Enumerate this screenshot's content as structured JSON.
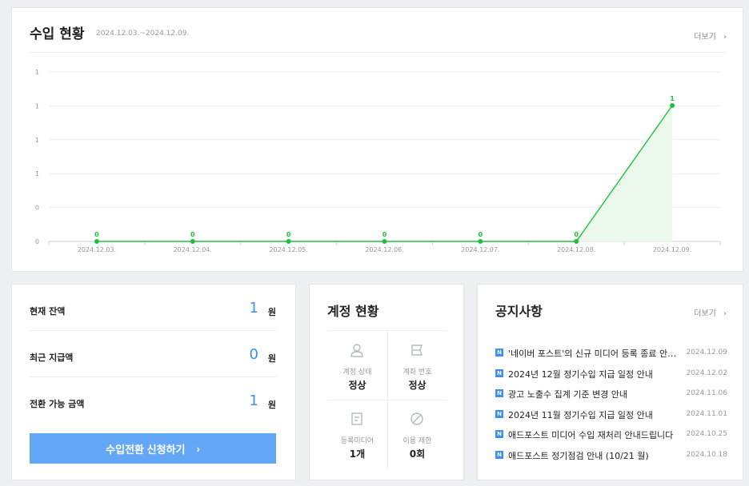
{
  "revenue": {
    "title": "수입 현황",
    "range": "2024.12.03.~2024.12.09.",
    "more_label": "더보기",
    "more_icon": "chevron-right-icon"
  },
  "chart_data": {
    "type": "area",
    "categories": [
      "2024.12.03.",
      "2024.12.04.",
      "2024.12.05.",
      "2024.12.06.",
      "2024.12.07.",
      "2024.12.08.",
      "2024.12.09."
    ],
    "values": [
      0,
      0,
      0,
      0,
      0,
      0,
      1
    ],
    "data_labels": [
      "0",
      "0",
      "0",
      "0",
      "0",
      "0",
      "1"
    ],
    "y_ticks": [
      "0",
      "0",
      "1",
      "1",
      "1",
      "1"
    ],
    "ylim": [
      0,
      1
    ],
    "grid": true,
    "color": "#1ec23a",
    "fill_color": "#eaf9ec"
  },
  "balance": {
    "rows": [
      {
        "label": "현재 잔액",
        "value": "1",
        "unit": "원"
      },
      {
        "label": "최근 지급액",
        "value": "0",
        "unit": "원"
      },
      {
        "label": "전환 가능 금액",
        "value": "1",
        "unit": "원"
      }
    ],
    "button_label": "수입전환 신청하기",
    "button_icon": "chevron-right-icon"
  },
  "account": {
    "title": "계정 현황",
    "items": [
      {
        "icon": "user-icon",
        "label": "계정 상태",
        "value": "정상"
      },
      {
        "icon": "bank-account-icon",
        "label": "계좌 번호",
        "value": "정상"
      },
      {
        "icon": "document-icon",
        "label": "등록미디어",
        "value": "1개"
      },
      {
        "icon": "restricted-icon",
        "label": "이용 제한",
        "value": "0회"
      }
    ]
  },
  "notice": {
    "title": "공지사항",
    "more_label": "더보기",
    "badge": "N",
    "items": [
      {
        "text": "'네이버 포스트'의 신규 미디어 등록 종료 안…",
        "date": "2024.12.09"
      },
      {
        "text": "2024년 12월 정기수입 지급 일정 안내",
        "date": "2024.12.02"
      },
      {
        "text": "광고 노출수 집계 기준 변경 안내",
        "date": "2024.11.06"
      },
      {
        "text": "2024년 11월 정기수입 지급 일정 안내",
        "date": "2024.11.01"
      },
      {
        "text": "애드포스트 미디어 수입 재처리 안내드립니다",
        "date": "2024.10.25"
      },
      {
        "text": "애드포스트 정기점검 안내 (10/21 월)",
        "date": "2024.10.18"
      }
    ]
  }
}
